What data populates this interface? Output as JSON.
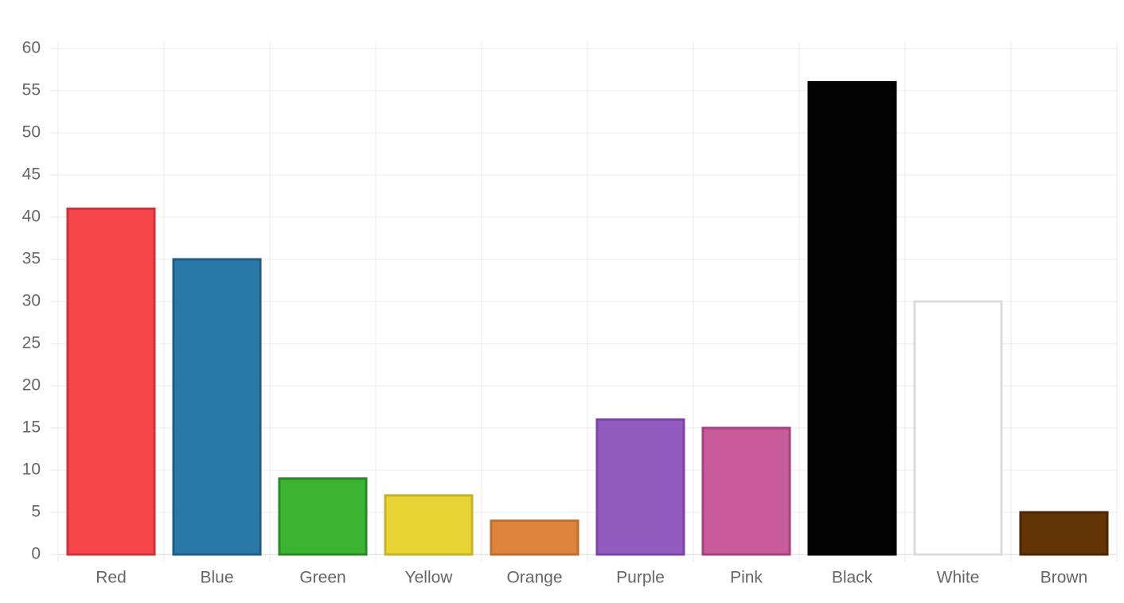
{
  "chart_data": {
    "type": "bar",
    "categories": [
      "Red",
      "Blue",
      "Green",
      "Yellow",
      "Orange",
      "Purple",
      "Pink",
      "Black",
      "White",
      "Brown"
    ],
    "values": [
      41,
      35,
      9,
      7,
      4,
      16,
      15,
      56,
      30,
      5
    ],
    "colors": [
      "#f7464a",
      "#2a78a8",
      "#3bb531",
      "#e8d432",
      "#dc843c",
      "#935bbf",
      "#c75b9b",
      "#030303",
      "#ffffff",
      "#633506"
    ],
    "border_colors": [
      "#d0323a",
      "#1f5f87",
      "#2a8a24",
      "#c8b22c",
      "#c06f2e",
      "#7b44a8",
      "#a8427f",
      "#030303",
      "#dcdcdc",
      "#4e2804"
    ],
    "ylim": [
      0,
      60
    ],
    "yticks": [
      0,
      5,
      10,
      15,
      20,
      25,
      30,
      35,
      40,
      45,
      50,
      55,
      60
    ],
    "grid": true
  }
}
